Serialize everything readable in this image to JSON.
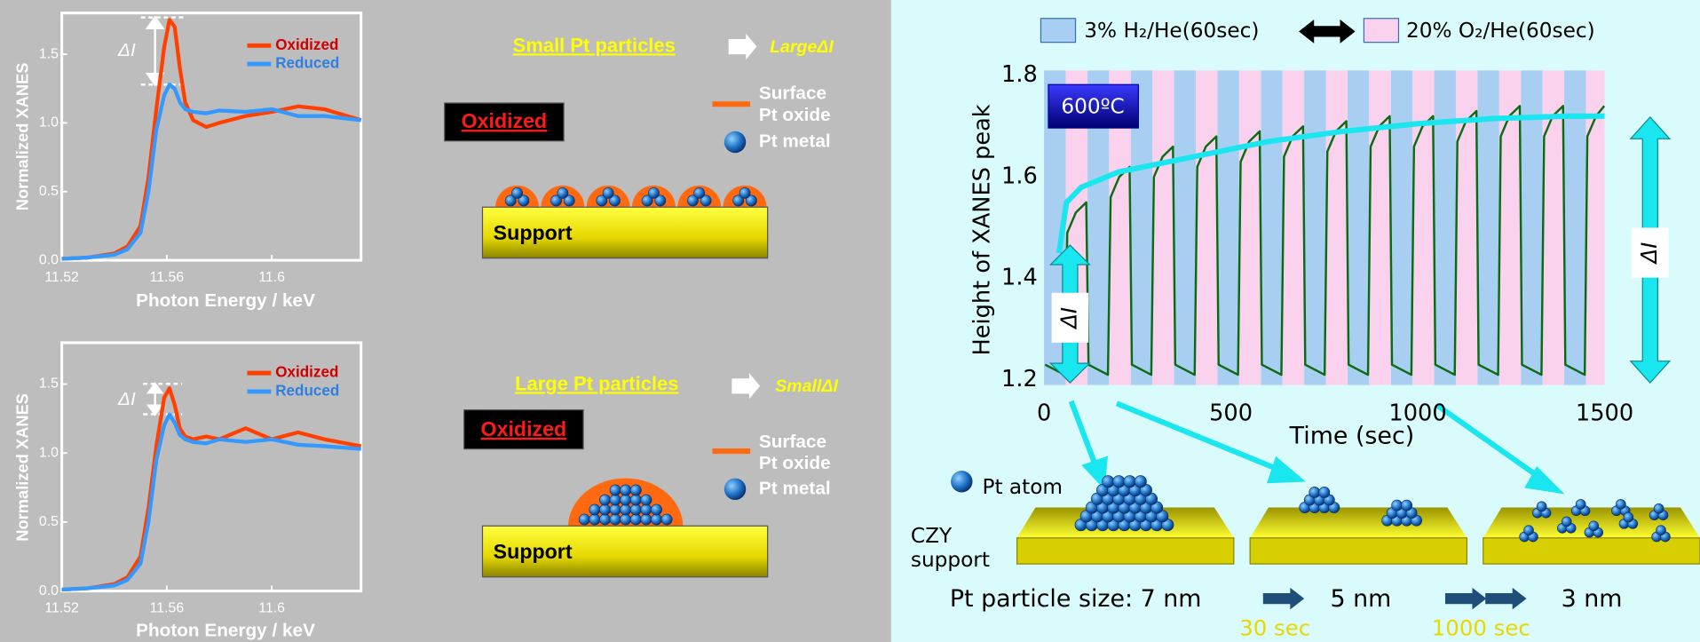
{
  "chart_data": [
    {
      "type": "line",
      "xlabel": "Photon Energy / keV",
      "ylabel": "Normalized XANES",
      "annotations": [
        "ΔI"
      ],
      "xlim": [
        11.52,
        11.634
      ],
      "ylim": [
        0,
        1.8
      ],
      "xticks": [
        11.52,
        11.56,
        11.6
      ],
      "yticks": [
        {
          "value": 0,
          "label": "0.0"
        },
        {
          "value": 0.5,
          "label": "0.5"
        },
        {
          "value": 1,
          "label": "1.0"
        },
        {
          "value": 1.5,
          "label": "1.5"
        }
      ],
      "x": [
        11.52,
        11.53,
        11.54,
        11.545,
        11.55,
        11.553,
        11.556,
        11.559,
        11.561,
        11.563,
        11.565,
        11.567,
        11.57,
        11.575,
        11.58,
        11.59,
        11.6,
        11.61,
        11.62,
        11.634
      ],
      "series": [
        {
          "name": "Oxidized",
          "color": "#ff4000",
          "values": [
            0.01,
            0.02,
            0.05,
            0.1,
            0.25,
            0.6,
            1.1,
            1.55,
            1.75,
            1.7,
            1.4,
            1.15,
            1.02,
            0.97,
            1.0,
            1.05,
            1.08,
            1.12,
            1.1,
            1.02
          ]
        },
        {
          "name": "Reduced",
          "color": "#3399ff",
          "values": [
            0.01,
            0.02,
            0.04,
            0.08,
            0.2,
            0.5,
            0.95,
            1.2,
            1.28,
            1.25,
            1.15,
            1.1,
            1.08,
            1.07,
            1.09,
            1.08,
            1.1,
            1.05,
            1.05,
            1.02
          ]
        }
      ]
    },
    {
      "type": "line",
      "xlabel": "Photon Energy / keV",
      "ylabel": "Normalized XANES",
      "annotations": [
        "ΔI"
      ],
      "xlim": [
        11.52,
        11.634
      ],
      "ylim": [
        0,
        1.8
      ],
      "xticks": [
        11.52,
        11.56,
        11.6
      ],
      "yticks": [
        {
          "value": 0,
          "label": "0.0"
        },
        {
          "value": 0.5,
          "label": "0.5"
        },
        {
          "value": 1,
          "label": "1.0"
        },
        {
          "value": 1.5,
          "label": "1.5"
        }
      ],
      "x": [
        11.52,
        11.53,
        11.54,
        11.545,
        11.55,
        11.553,
        11.556,
        11.559,
        11.561,
        11.563,
        11.565,
        11.567,
        11.57,
        11.575,
        11.58,
        11.59,
        11.6,
        11.61,
        11.62,
        11.634
      ],
      "series": [
        {
          "name": "Oxidized",
          "color": "#ff4000",
          "values": [
            0.01,
            0.02,
            0.05,
            0.1,
            0.25,
            0.6,
            1.05,
            1.4,
            1.47,
            1.35,
            1.18,
            1.12,
            1.1,
            1.12,
            1.1,
            1.18,
            1.1,
            1.15,
            1.1,
            1.05
          ]
        },
        {
          "name": "Reduced",
          "color": "#3399ff",
          "values": [
            0.01,
            0.02,
            0.04,
            0.08,
            0.2,
            0.5,
            0.95,
            1.2,
            1.28,
            1.22,
            1.13,
            1.1,
            1.08,
            1.07,
            1.1,
            1.08,
            1.1,
            1.06,
            1.05,
            1.03
          ]
        }
      ]
    },
    {
      "type": "line",
      "xlabel": "Time (sec)",
      "ylabel": "Height of XANES peak",
      "annotations": [
        "600ºC",
        "ΔI",
        "ΔI"
      ],
      "xlim": [
        0,
        1500
      ],
      "ylim": [
        1.19,
        1.81
      ],
      "xticks": [
        0,
        500,
        1000,
        1500
      ],
      "yticks": [
        1.2,
        1.4,
        1.6,
        1.8
      ],
      "bands": [
        {
          "name": "3% H₂/He(60sec)",
          "color": "#a8cff2",
          "intervals": [
            [
              0,
              58
            ],
            [
              116,
              174
            ],
            [
              232,
              290
            ],
            [
              348,
              406
            ],
            [
              464,
              522
            ],
            [
              580,
              638
            ],
            [
              696,
              754
            ],
            [
              812,
              870
            ],
            [
              928,
              986
            ],
            [
              1044,
              1102
            ],
            [
              1160,
              1218
            ],
            [
              1276,
              1334
            ],
            [
              1392,
              1450
            ]
          ]
        },
        {
          "name": "20% O₂/He(60sec)",
          "color": "#fbd2ee",
          "intervals": [
            [
              58,
              116
            ],
            [
              174,
              232
            ],
            [
              290,
              348
            ],
            [
              406,
              464
            ],
            [
              522,
              580
            ],
            [
              638,
              696
            ],
            [
              754,
              812
            ],
            [
              870,
              928
            ],
            [
              986,
              1044
            ],
            [
              1102,
              1160
            ],
            [
              1218,
              1276
            ],
            [
              1334,
              1392
            ],
            [
              1450,
              1500
            ]
          ]
        }
      ],
      "series": [
        {
          "color": "#0b6b12",
          "x": [
            3,
            55,
            62,
            85,
            113,
            119,
            171,
            178,
            201,
            229,
            235,
            287,
            294,
            317,
            345,
            351,
            403,
            410,
            433,
            461,
            467,
            519,
            526,
            549,
            577,
            583,
            635,
            642,
            665,
            693,
            699,
            751,
            758,
            781,
            809,
            815,
            867,
            874,
            897,
            925,
            931,
            983,
            990,
            1013,
            1041,
            1047,
            1099,
            1106,
            1129,
            1157,
            1163,
            1215,
            1222,
            1245,
            1273,
            1279,
            1331,
            1338,
            1361,
            1389,
            1395,
            1447,
            1454,
            1477,
            1499
          ],
          "values": [
            1.23,
            1.21,
            1.49,
            1.53,
            1.55,
            1.23,
            1.21,
            1.56,
            1.6,
            1.62,
            1.23,
            1.21,
            1.6,
            1.64,
            1.66,
            1.23,
            1.21,
            1.62,
            1.66,
            1.68,
            1.23,
            1.21,
            1.63,
            1.67,
            1.69,
            1.23,
            1.21,
            1.64,
            1.68,
            1.7,
            1.23,
            1.21,
            1.65,
            1.69,
            1.71,
            1.23,
            1.21,
            1.66,
            1.7,
            1.72,
            1.23,
            1.21,
            1.66,
            1.7,
            1.72,
            1.23,
            1.21,
            1.67,
            1.71,
            1.73,
            1.23,
            1.21,
            1.68,
            1.72,
            1.74,
            1.23,
            1.21,
            1.68,
            1.72,
            1.74,
            1.23,
            1.21,
            1.68,
            1.72,
            1.74
          ]
        },
        {
          "color": "#19e6ee",
          "x": [
            40,
            60,
            100,
            200,
            400,
            600,
            800,
            1000,
            1200,
            1400,
            1500
          ],
          "values": [
            1.45,
            1.55,
            1.58,
            1.61,
            1.64,
            1.67,
            1.69,
            1.705,
            1.715,
            1.72,
            1.72
          ]
        }
      ]
    }
  ],
  "panels": [
    {
      "title": "Small Pt particles",
      "result": "LargeΔI",
      "state": "Oxidized",
      "oxide": [
        "Surface",
        "Pt oxide"
      ],
      "metal": "Pt metal",
      "support": "Support"
    },
    {
      "title": "Large Pt particles",
      "result": "SmallΔI",
      "state": "Oxidized",
      "oxide": [
        "Surface",
        "Pt oxide"
      ],
      "metal": "Pt metal",
      "support": "Support"
    }
  ],
  "sintering": {
    "atom": "Pt atom",
    "support": [
      "CZY",
      "support"
    ],
    "size": "Pt particle size: 7 nm",
    "sizes": [
      "5 nm",
      "3 nm"
    ],
    "times": [
      "30 sec",
      "1000 sec"
    ]
  }
}
